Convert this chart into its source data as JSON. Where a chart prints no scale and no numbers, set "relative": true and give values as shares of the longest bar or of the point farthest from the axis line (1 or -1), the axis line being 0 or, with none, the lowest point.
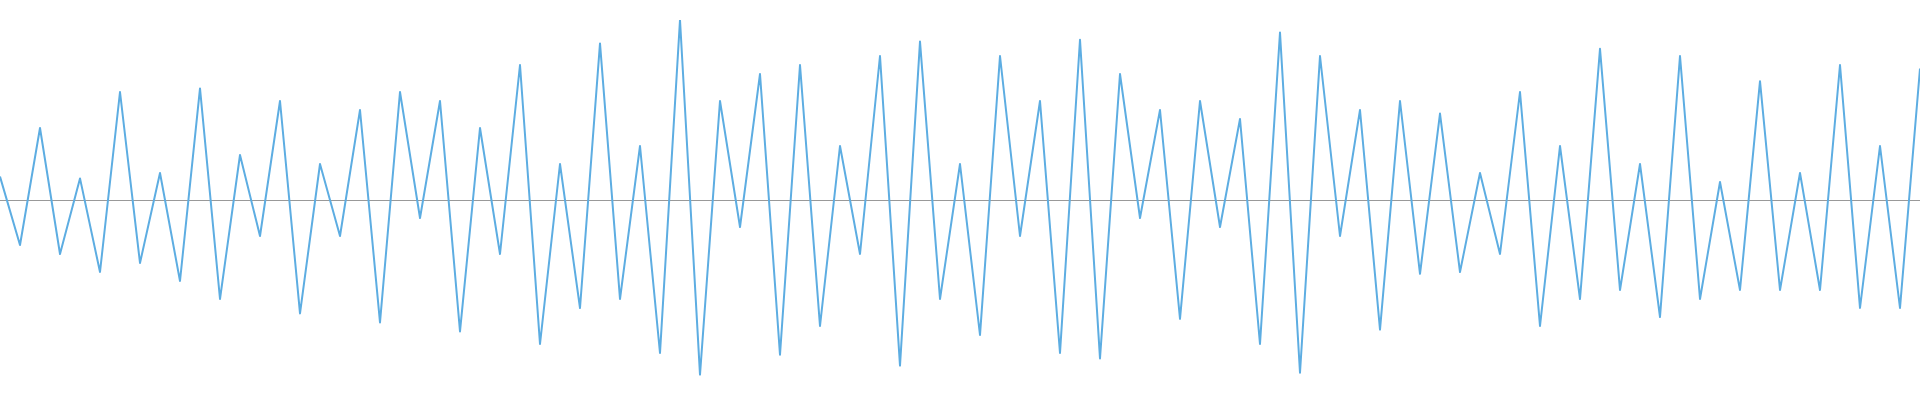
{
  "chart_data": {
    "type": "line",
    "relative": true,
    "categories": [
      null,
      null,
      null,
      null,
      null,
      null,
      null,
      null,
      null,
      null,
      null,
      null,
      null,
      null,
      null,
      null,
      null,
      null,
      null,
      null,
      null,
      null,
      null,
      null,
      null,
      null,
      null,
      null,
      null,
      null,
      null,
      null,
      null,
      null,
      null,
      null,
      null,
      null,
      null,
      null,
      null,
      null,
      null,
      null,
      null,
      null,
      null,
      null,
      null,
      null,
      null,
      null,
      null,
      null,
      null,
      null,
      null,
      null,
      null,
      null,
      null,
      null,
      null,
      null,
      null,
      null,
      null,
      null,
      null,
      null,
      null,
      null,
      null,
      null,
      null,
      null,
      null,
      null,
      null,
      null,
      null,
      null,
      null,
      null,
      null,
      null,
      null,
      null,
      null,
      null,
      null,
      null,
      null,
      null,
      null,
      null,
      null
    ],
    "series": [
      {
        "color": "#5dade2",
        "values": [
          0.13,
          -0.25,
          0.4,
          -0.3,
          0.12,
          -0.4,
          0.6,
          -0.35,
          0.15,
          -0.45,
          0.62,
          -0.55,
          0.25,
          -0.2,
          0.55,
          -0.63,
          0.2,
          -0.2,
          0.5,
          -0.68,
          0.6,
          -0.1,
          0.55,
          -0.73,
          0.4,
          -0.3,
          0.75,
          -0.8,
          0.2,
          -0.6,
          0.87,
          -0.55,
          0.3,
          -0.85,
          1,
          -0.97,
          0.55,
          -0.15,
          0.7,
          -0.86,
          0.75,
          -0.7,
          0.3,
          -0.3,
          0.8,
          -0.92,
          0.88,
          -0.55,
          0.2,
          -0.75,
          0.8,
          -0.2,
          0.55,
          -0.85,
          0.89,
          -0.88,
          0.7,
          -0.1,
          0.5,
          -0.66,
          0.55,
          -0.15,
          0.45,
          -0.8,
          0.93,
          -0.96,
          0.8,
          -0.2,
          0.5,
          -0.72,
          0.55,
          -0.41,
          0.48,
          -0.4,
          0.15,
          -0.3,
          0.6,
          -0.7,
          0.3,
          -0.55,
          0.84,
          -0.5,
          0.2,
          -0.65,
          0.8,
          -0.55,
          0.1,
          -0.5,
          0.66,
          -0.5,
          0.15,
          -0.5,
          0.75,
          -0.6,
          0.3,
          -0.6,
          0.73
        ]
      }
    ],
    "legend": false,
    "marker": "none",
    "line_style": "solid"
  }
}
